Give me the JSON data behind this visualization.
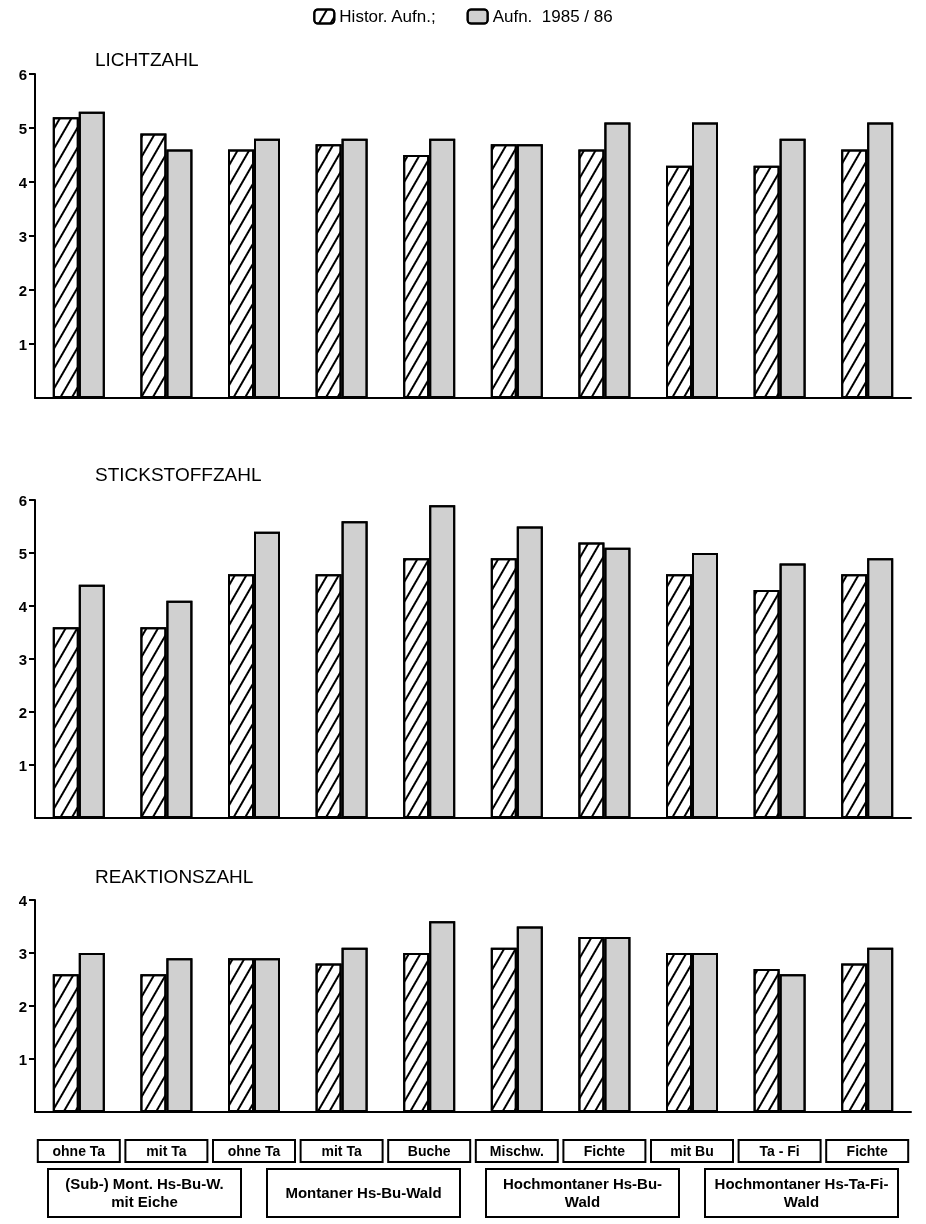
{
  "chart_data": [
    {
      "type": "bar",
      "title": "LICHTZAHL",
      "categories": [
        null,
        null,
        null,
        null,
        null,
        null,
        null,
        null,
        null,
        null
      ],
      "series": [
        {
          "name": "Histor. Aufn.;",
          "color": "#ffffff",
          "values": [
            5.2,
            4.9,
            4.6,
            4.7,
            4.5,
            4.7,
            4.6,
            4.3,
            4.3,
            4.6
          ]
        },
        {
          "name": "Aufn.  1985 / 86",
          "color": "#d0d0d0",
          "values": [
            5.3,
            4.6,
            4.8,
            4.8,
            4.8,
            4.7,
            5.1,
            5.1,
            4.8,
            5.1
          ]
        }
      ],
      "ylim": [
        0,
        6
      ],
      "yticks": [
        1,
        2,
        3,
        4,
        5,
        6
      ],
      "grid": false,
      "legend": "top",
      "tick_labels": "y"
    },
    {
      "type": "bar",
      "title": "STICKSTOFFZAHL",
      "categories": [
        null,
        null,
        null,
        null,
        null,
        null,
        null,
        null,
        null,
        null
      ],
      "series": [
        {
          "color": "#ffffff",
          "values": [
            3.6,
            3.6,
            4.6,
            4.6,
            4.9,
            4.9,
            5.2,
            4.6,
            4.3,
            4.6
          ]
        },
        {
          "color": "#d0d0d0",
          "values": [
            4.4,
            4.1,
            5.4,
            5.6,
            5.9,
            5.5,
            5.1,
            5.0,
            4.8,
            4.9
          ]
        }
      ],
      "ylim": [
        0,
        6
      ],
      "yticks": [
        1,
        2,
        3,
        4,
        5,
        6
      ],
      "grid": false,
      "legend": false,
      "tick_labels": "y"
    },
    {
      "type": "bar",
      "title": "REAKTIONSZAHL",
      "categories": [
        "ohne Ta",
        "mit Ta",
        "ohne Ta",
        "mit Ta",
        "Buche",
        "Mischw.",
        "Fichte",
        "mit Bu",
        "Ta - Fi",
        "Fichte"
      ],
      "series": [
        {
          "color": "#ffffff",
          "values": [
            2.6,
            2.6,
            2.9,
            2.8,
            3.0,
            3.1,
            3.3,
            3.0,
            2.7,
            2.8
          ]
        },
        {
          "color": "#d0d0d0",
          "values": [
            3.0,
            2.9,
            2.9,
            3.1,
            3.6,
            3.5,
            3.3,
            3.0,
            2.6,
            3.1
          ]
        }
      ],
      "ylim": [
        0,
        4
      ],
      "yticks": [
        1,
        2,
        3,
        4
      ],
      "grid": false,
      "legend": false,
      "annotations": [
        "(Sub-) Mont. Hs-Bu-W. mit Eiche",
        "Montaner Hs-Bu-Wald",
        "Hochmontaner Hs-Bu-Wald",
        "Hochmontaner Hs-Ta-Fi-Wald"
      ]
    }
  ]
}
